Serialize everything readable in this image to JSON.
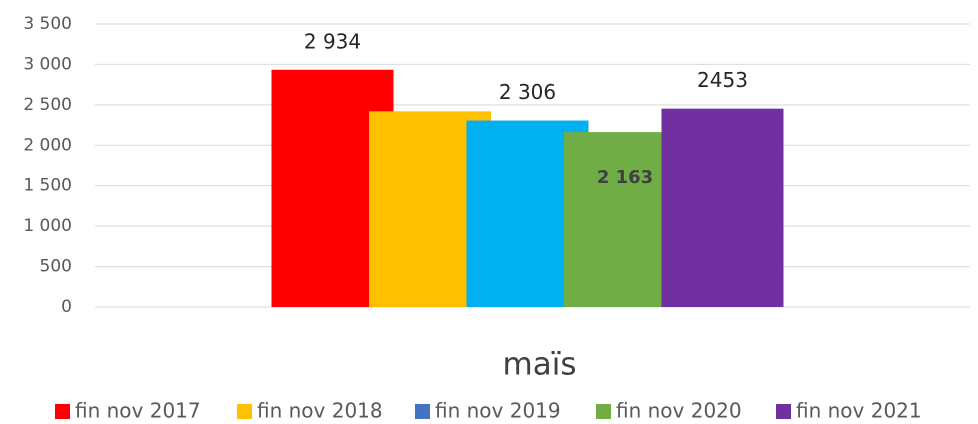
{
  "chart_data": {
    "type": "bar",
    "categories": [
      "maïs"
    ],
    "series": [
      {
        "name": "fin nov 2017",
        "color": "#ff0000",
        "values": [
          2934
        ],
        "value_labels": [
          "2 934"
        ]
      },
      {
        "name": "fin nov 2018",
        "color": "#ffc000",
        "values": [
          2420
        ]
      },
      {
        "name": "fin nov 2019",
        "color": "#00b0f0",
        "legend_color": "#4472c4",
        "values": [
          2306
        ],
        "value_labels": [
          "2 306"
        ]
      },
      {
        "name": "fin nov 2020",
        "color": "#70ad47",
        "values": [
          2163
        ],
        "value_labels": [
          "2 163"
        ]
      },
      {
        "name": "fin nov 2021",
        "color": "#7030a0",
        "values": [
          2453
        ],
        "value_labels": [
          "2453"
        ]
      }
    ],
    "ylim": [
      0,
      3500
    ],
    "yticks": [
      0,
      500,
      {
        "value": 1000,
        "label": "1 000"
      },
      {
        "value": 1500,
        "label": "1 500"
      },
      {
        "value": 2000,
        "label": "2 000"
      },
      {
        "value": 2500,
        "label": "2 500"
      },
      {
        "value": 3000,
        "label": "3 000"
      },
      {
        "value": 3500,
        "label": "3 500"
      }
    ],
    "grid": true
  }
}
